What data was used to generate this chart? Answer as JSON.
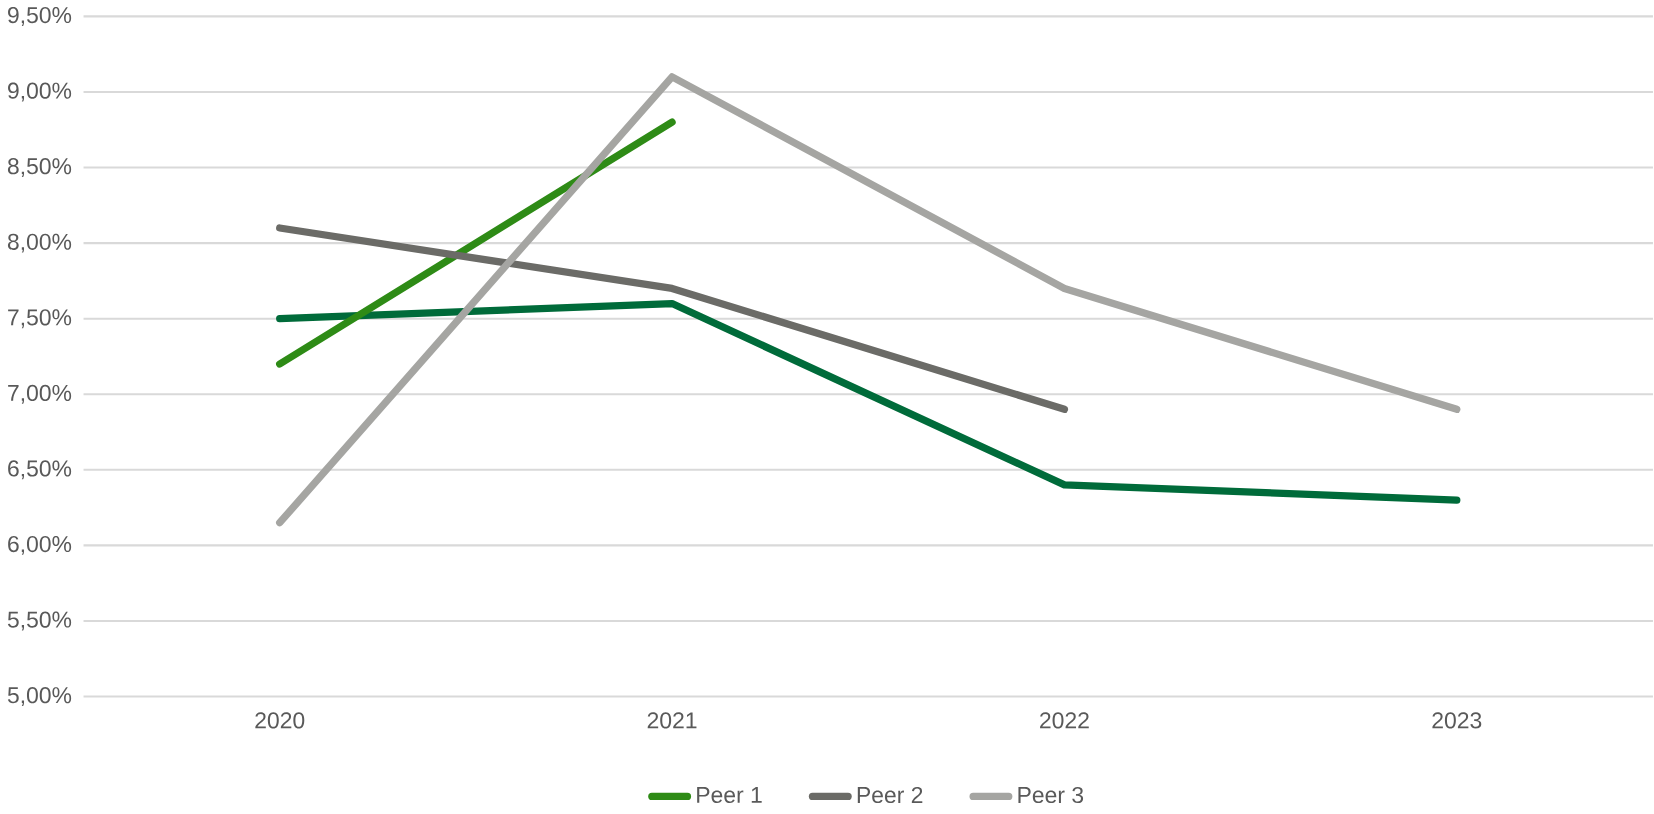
{
  "chart_data": {
    "type": "line",
    "categories": [
      "2020",
      "2021",
      "2022",
      "2023"
    ],
    "series": [
      {
        "color": "#006b3a",
        "values": [
          7.5,
          7.6,
          6.4,
          6.3
        ]
      },
      {
        "name": "Peer 1",
        "color": "#2e8b16",
        "values": [
          7.2,
          8.8,
          null,
          null
        ]
      },
      {
        "name": "Peer 2",
        "color": "#6b6b67",
        "values": [
          8.1,
          7.7,
          6.9,
          null
        ]
      },
      {
        "name": "Peer 3",
        "color": "#a5a5a2",
        "values": [
          6.15,
          9.1,
          7.7,
          6.9
        ]
      }
    ],
    "ylim": [
      5.0,
      9.5
    ],
    "yticks": [
      {
        "value": 5.0,
        "label": "5,00%"
      },
      {
        "value": 5.5,
        "label": "5,50%"
      },
      {
        "value": 6.0,
        "label": "6,00%"
      },
      {
        "value": 6.5,
        "label": "6,50%"
      },
      {
        "value": 7.0,
        "label": "7,00%"
      },
      {
        "value": 7.5,
        "label": "7,50%"
      },
      {
        "value": 8.0,
        "label": "8,00%"
      },
      {
        "value": 8.5,
        "label": "8,50%"
      },
      {
        "value": 9.0,
        "label": "9,00%"
      },
      {
        "value": 9.5,
        "label": "9,50%"
      }
    ],
    "grid": "y",
    "legend": "bottom",
    "marker": "none",
    "line_style": "solid"
  }
}
